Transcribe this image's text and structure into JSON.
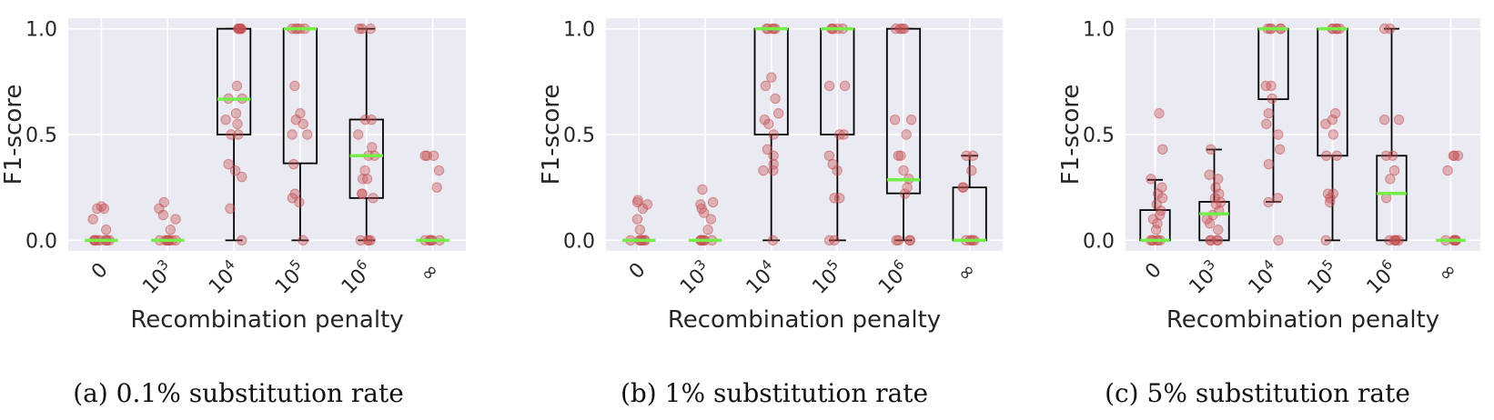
{
  "figure": {
    "colors": {
      "panel_bg": "#eaeaf2",
      "grid": "#ffffff",
      "points": "#c44e52",
      "median": "#76ee4a",
      "box": "#000000"
    }
  },
  "chart_data": [
    {
      "type": "box",
      "caption": "(a) 0.1% substitution rate",
      "xlabel": "Recombination penalty",
      "ylabel": "F1-score",
      "ylim": [
        -0.05,
        1.05
      ],
      "yticks": [
        0.0,
        0.5,
        1.0
      ],
      "ytick_labels": [
        "0.0",
        "0.5",
        "1.0"
      ],
      "grid": true,
      "categories": [
        {
          "base": "0",
          "exp": ""
        },
        {
          "base": "10",
          "exp": "3"
        },
        {
          "base": "10",
          "exp": "4"
        },
        {
          "base": "10",
          "exp": "5"
        },
        {
          "base": "10",
          "exp": "6"
        },
        {
          "base": "∞",
          "exp": ""
        }
      ],
      "boxes": [
        {
          "whislo": 0.0,
          "q1": 0.0,
          "median": 0.0,
          "q3": 0.0,
          "whishi": 0.0
        },
        {
          "whislo": 0.0,
          "q1": 0.0,
          "median": 0.0,
          "q3": 0.0,
          "whishi": 0.0
        },
        {
          "whislo": 0.0,
          "q1": 0.5,
          "median": 0.667,
          "q3": 1.0,
          "whishi": 1.0
        },
        {
          "whislo": 0.0,
          "q1": 0.364,
          "median": 1.0,
          "q3": 1.0,
          "whishi": 1.0
        },
        {
          "whislo": 0.0,
          "q1": 0.2,
          "median": 0.4,
          "q3": 0.571,
          "whishi": 1.0
        },
        {
          "whislo": 0.0,
          "q1": 0.0,
          "median": 0.0,
          "q3": 0.0,
          "whishi": 0.0
        }
      ],
      "points": [
        [
          0,
          0,
          0,
          0,
          0,
          0,
          0,
          0,
          0,
          0.05,
          0.1,
          0.15,
          0.15,
          0.16
        ],
        [
          0,
          0,
          0,
          0,
          0,
          0,
          0,
          0,
          0,
          0.05,
          0.1,
          0.12,
          0.15,
          0.18
        ],
        [
          0,
          0.15,
          0.3,
          0.33,
          0.36,
          0.5,
          0.5,
          0.55,
          0.57,
          0.6,
          0.67,
          0.67,
          0.73,
          1,
          1,
          1,
          1,
          1,
          1
        ],
        [
          0,
          0.18,
          0.2,
          0.22,
          0.36,
          0.5,
          0.5,
          0.55,
          0.57,
          0.6,
          0.73,
          1,
          1,
          1,
          1,
          1
        ],
        [
          0,
          0,
          0,
          0,
          0.2,
          0.22,
          0.22,
          0.29,
          0.29,
          0.33,
          0.4,
          0.4,
          0.44,
          0.5,
          0.57,
          0.57,
          1,
          1,
          1
        ],
        [
          0,
          0,
          0,
          0,
          0,
          0,
          0.25,
          0.33,
          0.4,
          0.4,
          0.4
        ]
      ]
    },
    {
      "type": "box",
      "caption": "(b) 1% substitution rate",
      "xlabel": "Recombination penalty",
      "ylabel": "F1-score",
      "ylim": [
        -0.05,
        1.05
      ],
      "yticks": [
        0.0,
        0.5,
        1.0
      ],
      "ytick_labels": [
        "0.0",
        "0.5",
        "1.0"
      ],
      "grid": true,
      "categories": [
        {
          "base": "0",
          "exp": ""
        },
        {
          "base": "10",
          "exp": "3"
        },
        {
          "base": "10",
          "exp": "4"
        },
        {
          "base": "10",
          "exp": "5"
        },
        {
          "base": "10",
          "exp": "6"
        },
        {
          "base": "∞",
          "exp": ""
        }
      ],
      "boxes": [
        {
          "whislo": 0.0,
          "q1": 0.0,
          "median": 0.0,
          "q3": 0.0,
          "whishi": 0.0
        },
        {
          "whislo": 0.0,
          "q1": 0.0,
          "median": 0.0,
          "q3": 0.0,
          "whishi": 0.0
        },
        {
          "whislo": 0.0,
          "q1": 0.5,
          "median": 1.0,
          "q3": 1.0,
          "whishi": 1.0
        },
        {
          "whislo": 0.0,
          "q1": 0.5,
          "median": 1.0,
          "q3": 1.0,
          "whishi": 1.0
        },
        {
          "whislo": 0.0,
          "q1": 0.222,
          "median": 0.286,
          "q3": 1.0,
          "whishi": 1.0
        },
        {
          "whislo": 0.0,
          "q1": 0.0,
          "median": 0.0,
          "q3": 0.25,
          "whishi": 0.4
        }
      ],
      "points": [
        [
          0,
          0,
          0,
          0,
          0,
          0,
          0,
          0.05,
          0.1,
          0.15,
          0.17,
          0.18,
          0.19
        ],
        [
          0,
          0,
          0,
          0,
          0,
          0,
          0,
          0.05,
          0.1,
          0.13,
          0.15,
          0.17,
          0.18,
          0.24
        ],
        [
          0,
          0.33,
          0.33,
          0.36,
          0.4,
          0.43,
          0.5,
          0.55,
          0.57,
          0.6,
          0.67,
          0.73,
          0.77,
          1,
          1,
          1,
          1,
          1
        ],
        [
          0,
          0,
          0.2,
          0.2,
          0.33,
          0.36,
          0.4,
          0.5,
          0.5,
          0.73,
          0.73,
          1,
          1,
          1,
          1,
          1
        ],
        [
          0,
          0,
          0,
          0,
          0.22,
          0.25,
          0.29,
          0.33,
          0.4,
          0.4,
          0.5,
          0.57,
          0.57,
          1,
          1,
          1,
          1
        ],
        [
          0,
          0,
          0,
          0,
          0,
          0.25,
          0.25,
          0.33,
          0.4,
          0.4
        ]
      ]
    },
    {
      "type": "box",
      "caption": "(c) 5% substitution rate",
      "xlabel": "Recombination penalty",
      "ylabel": "F1-score",
      "ylim": [
        -0.05,
        1.05
      ],
      "yticks": [
        0.0,
        0.5,
        1.0
      ],
      "ytick_labels": [
        "0.0",
        "0.5",
        "1.0"
      ],
      "grid": true,
      "categories": [
        {
          "base": "0",
          "exp": ""
        },
        {
          "base": "10",
          "exp": "3"
        },
        {
          "base": "10",
          "exp": "4"
        },
        {
          "base": "10",
          "exp": "5"
        },
        {
          "base": "10",
          "exp": "6"
        },
        {
          "base": "∞",
          "exp": ""
        }
      ],
      "boxes": [
        {
          "whislo": 0.0,
          "q1": 0.0,
          "median": 0.0,
          "q3": 0.143,
          "whishi": 0.286
        },
        {
          "whislo": 0.0,
          "q1": 0.0,
          "median": 0.125,
          "q3": 0.182,
          "whishi": 0.429
        },
        {
          "whislo": 0.182,
          "q1": 0.667,
          "median": 1.0,
          "q3": 1.0,
          "whishi": 1.0
        },
        {
          "whislo": 0.0,
          "q1": 0.4,
          "median": 1.0,
          "q3": 1.0,
          "whishi": 1.0
        },
        {
          "whislo": 0.0,
          "q1": 0.0,
          "median": 0.222,
          "q3": 0.4,
          "whishi": 1.0
        },
        {
          "whislo": 0.0,
          "q1": 0.0,
          "median": 0.0,
          "q3": 0.0,
          "whishi": 0.0
        }
      ],
      "points": [
        [
          0,
          0,
          0,
          0,
          0,
          0,
          0.05,
          0.08,
          0.1,
          0.12,
          0.14,
          0.17,
          0.2,
          0.22,
          0.25,
          0.29,
          0.43,
          0.6
        ],
        [
          0,
          0,
          0,
          0,
          0.05,
          0.08,
          0.1,
          0.12,
          0.14,
          0.17,
          0.18,
          0.2,
          0.22,
          0.25,
          0.29,
          0.31,
          0.43
        ],
        [
          0,
          0.18,
          0.2,
          0.36,
          0.43,
          0.5,
          0.55,
          0.6,
          0.67,
          0.73,
          0.73,
          1,
          1,
          1,
          1,
          1
        ],
        [
          0,
          0.18,
          0.2,
          0.22,
          0.22,
          0.4,
          0.4,
          0.5,
          0.55,
          0.57,
          0.6,
          1,
          1,
          1,
          1,
          1
        ],
        [
          0,
          0,
          0,
          0,
          0,
          0.2,
          0.29,
          0.33,
          0.4,
          0.4,
          0.57,
          0.57,
          1,
          1
        ],
        [
          0,
          0,
          0,
          0,
          0,
          0,
          0.33,
          0.4,
          0.4,
          0.4
        ]
      ]
    }
  ]
}
